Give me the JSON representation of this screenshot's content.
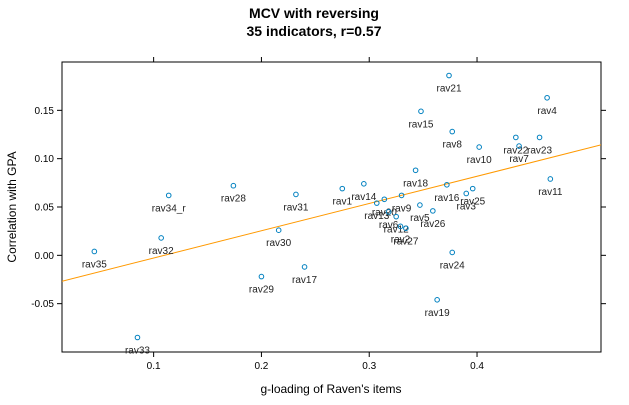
{
  "chart_data": {
    "type": "scatter",
    "title": "MCV with reversing",
    "subtitle": "35 indicators, r=0.57",
    "xlabel": "g-loading of Raven's items",
    "ylabel": "Correlation with GPA",
    "xlim": [
      0.015,
      0.515
    ],
    "ylim": [
      -0.1,
      0.2
    ],
    "xticks": [
      0.1,
      0.2,
      0.3,
      0.4
    ],
    "xtick_labels": [
      "0.1",
      "0.2",
      "0.3",
      "0.4"
    ],
    "yticks": [
      -0.05,
      0.0,
      0.05,
      0.1,
      0.15
    ],
    "ytick_labels": [
      "-0.05",
      "0.00",
      "0.05",
      "0.10",
      "0.15"
    ],
    "point_color": "#0080c0",
    "fit_color": "#ff9900",
    "fit_line": {
      "intercept": -0.031,
      "slope": 0.282
    },
    "points": [
      {
        "label": "rav35",
        "x": 0.045,
        "y": 0.004
      },
      {
        "label": "rav33",
        "x": 0.085,
        "y": -0.085
      },
      {
        "label": "rav32",
        "x": 0.107,
        "y": 0.018
      },
      {
        "label": "rav34_r",
        "x": 0.114,
        "y": 0.062
      },
      {
        "label": "rav28",
        "x": 0.174,
        "y": 0.072
      },
      {
        "label": "rav29",
        "x": 0.2,
        "y": -0.022
      },
      {
        "label": "rav30",
        "x": 0.216,
        "y": 0.026
      },
      {
        "label": "rav17",
        "x": 0.24,
        "y": -0.012
      },
      {
        "label": "rav31",
        "x": 0.232,
        "y": 0.063
      },
      {
        "label": "rav1",
        "x": 0.275,
        "y": 0.069
      },
      {
        "label": "rav14",
        "x": 0.295,
        "y": 0.074
      },
      {
        "label": "rav13",
        "x": 0.307,
        "y": 0.054
      },
      {
        "label": "rav20",
        "x": 0.314,
        "y": 0.058
      },
      {
        "label": "rav6",
        "x": 0.318,
        "y": 0.045
      },
      {
        "label": "rav12",
        "x": 0.325,
        "y": 0.04
      },
      {
        "label": "rav2",
        "x": 0.329,
        "y": 0.03
      },
      {
        "label": "rav27",
        "x": 0.334,
        "y": 0.028
      },
      {
        "label": "rav9",
        "x": 0.33,
        "y": 0.062
      },
      {
        "label": "rav5",
        "x": 0.347,
        "y": 0.052
      },
      {
        "label": "rav18",
        "x": 0.343,
        "y": 0.088
      },
      {
        "label": "rav26",
        "x": 0.359,
        "y": 0.046
      },
      {
        "label": "rav16",
        "x": 0.372,
        "y": 0.073
      },
      {
        "label": "rav3",
        "x": 0.39,
        "y": 0.064
      },
      {
        "label": "rav25",
        "x": 0.396,
        "y": 0.069
      },
      {
        "label": "rav24",
        "x": 0.377,
        "y": 0.003
      },
      {
        "label": "rav19",
        "x": 0.363,
        "y": -0.046
      },
      {
        "label": "rav15",
        "x": 0.348,
        "y": 0.149
      },
      {
        "label": "rav21",
        "x": 0.374,
        "y": 0.186
      },
      {
        "label": "rav8",
        "x": 0.377,
        "y": 0.128
      },
      {
        "label": "rav10",
        "x": 0.402,
        "y": 0.112
      },
      {
        "label": "rav22",
        "x": 0.436,
        "y": 0.122
      },
      {
        "label": "rav7",
        "x": 0.439,
        "y": 0.113
      },
      {
        "label": "rav23",
        "x": 0.458,
        "y": 0.122
      },
      {
        "label": "rav4",
        "x": 0.465,
        "y": 0.163
      },
      {
        "label": "rav11",
        "x": 0.468,
        "y": 0.079
      }
    ]
  }
}
